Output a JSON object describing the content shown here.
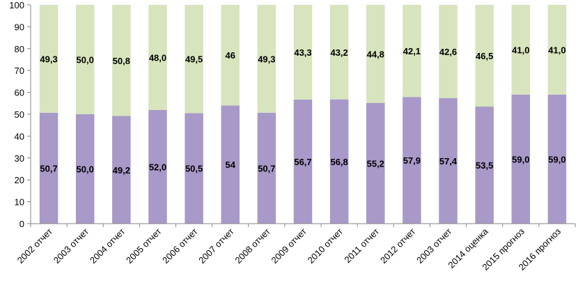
{
  "chart_data": {
    "type": "bar",
    "stacked": true,
    "percent_stacked": true,
    "categories": [
      "2002  отчет",
      "2003  отчет",
      "2004  отчет",
      "2005  отчет",
      "2006  отчет",
      "2007  отчет",
      "2008  отчет",
      "2009  отчет",
      "2010  отчет",
      "2011  отчет",
      "2012  отчет",
      "2003  отчет",
      "2014 оценка",
      "2015 прогноз",
      "2016 прогноз"
    ],
    "series": [
      {
        "color": "#a899c8",
        "values": [
          50.7,
          50.0,
          49.2,
          52.0,
          50.5,
          54,
          50.7,
          56.7,
          56.8,
          55.2,
          57.9,
          57.4,
          53.5,
          59.0,
          59.0
        ],
        "labels": [
          "50,7",
          "50,0",
          "49,2",
          "52,0",
          "50,5",
          "54",
          "50,7",
          "56,7",
          "56,8",
          "55,2",
          "57,9",
          "57,4",
          "53,5",
          "59,0",
          "59,0"
        ]
      },
      {
        "color": "#d7e4bd",
        "values": [
          49.3,
          50.0,
          50.8,
          48.0,
          49.5,
          46,
          49.3,
          43.3,
          43.2,
          44.8,
          42.1,
          42.6,
          46.5,
          41.0,
          41.0
        ],
        "labels": [
          "49,3",
          "50,0",
          "50,8",
          "48,0",
          "49,5",
          "46",
          "49,3",
          "43,3",
          "43,2",
          "44,8",
          "42,1",
          "42,6",
          "46,5",
          "41,0",
          "41,0"
        ]
      }
    ],
    "yticks": [
      "0",
      "10",
      "20",
      "30",
      "40",
      "50",
      "60",
      "70",
      "80",
      "90",
      "100"
    ],
    "ylim": [
      0,
      100
    ],
    "grid": false,
    "legend": "none",
    "title": "",
    "xlabel": "",
    "ylabel": ""
  }
}
